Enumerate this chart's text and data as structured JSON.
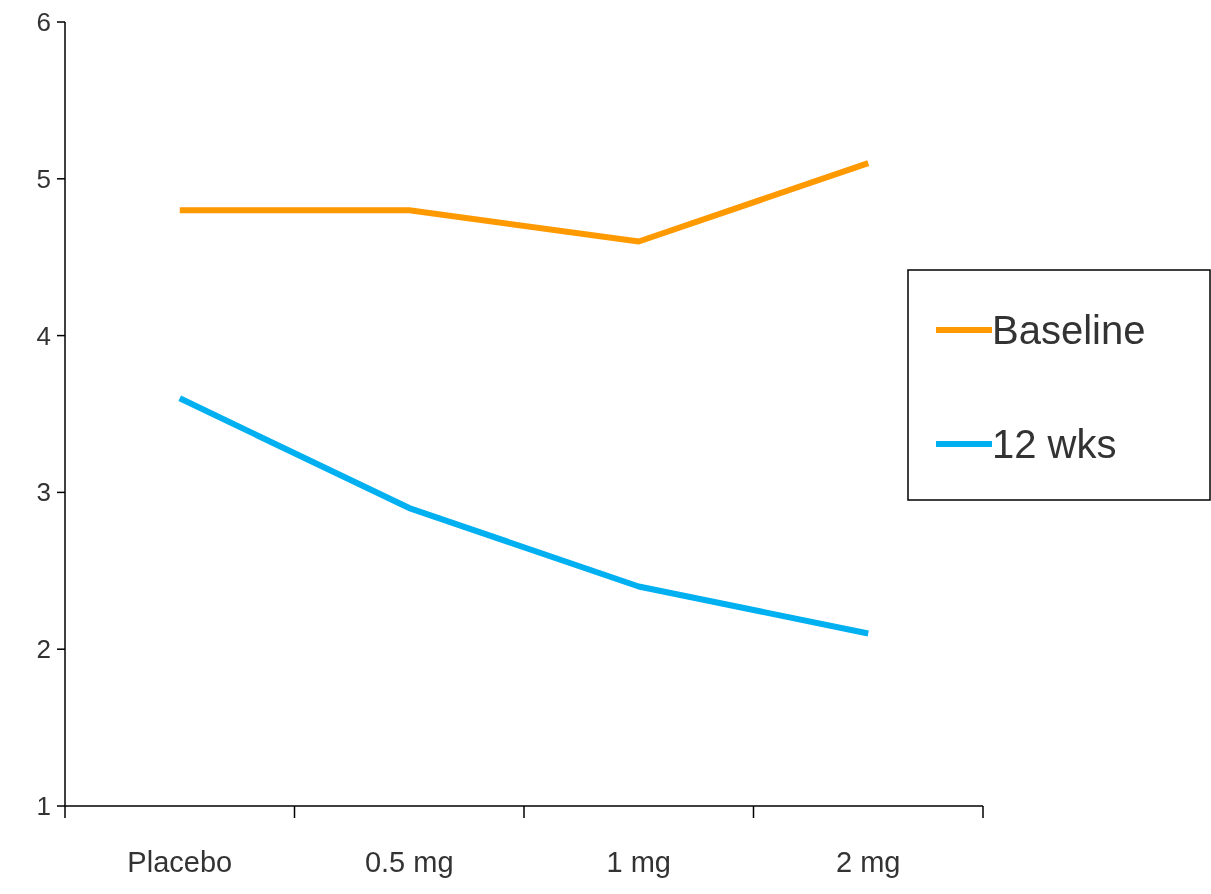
{
  "chart_data": {
    "type": "line",
    "categories": [
      "Placebo",
      "0.5 mg",
      "1 mg",
      "2 mg"
    ],
    "series": [
      {
        "name": "Baseline",
        "color": "#ff9900",
        "values": [
          4.8,
          4.8,
          4.6,
          5.1
        ]
      },
      {
        "name": "12 wks",
        "color": "#00b0f0",
        "values": [
          3.6,
          2.9,
          2.4,
          2.1
        ]
      }
    ],
    "ylim": [
      1,
      6
    ],
    "yticks": [
      1,
      2,
      3,
      4,
      5,
      6
    ],
    "grid": false,
    "legend": "right",
    "marker": "none",
    "line_style": "solid"
  }
}
